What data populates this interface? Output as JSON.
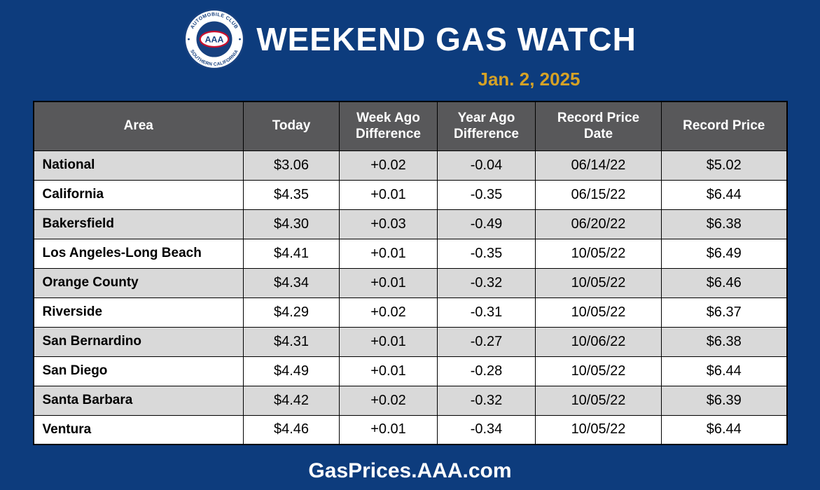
{
  "page": {
    "title": "WEEKEND GAS WATCH",
    "date": "Jan. 2, 2025",
    "footer": "GasPrices.AAA.com",
    "background_color": "#0d3c7d",
    "accent_gold": "#d5a226"
  },
  "logo": {
    "top_text": "AUTOMOBILE CLUB",
    "bottom_text": "SOUTHERN CALIFORNIA",
    "center_text": "AAA",
    "blue": "#16407f",
    "red": "#c8102e"
  },
  "table": {
    "header_bg": "#58585a",
    "row_alt_bg": "#d9d9d9",
    "column_keys": [
      "area",
      "today",
      "week_ago_diff",
      "year_ago_diff",
      "record_date",
      "record_price"
    ],
    "headers": [
      "Area",
      "Today",
      "Week Ago Difference",
      "Year Ago Difference",
      "Record Price Date",
      "Record Price"
    ],
    "rows": [
      {
        "area": "National",
        "today": "$3.06",
        "week_ago_diff": "+0.02",
        "year_ago_diff": "-0.04",
        "record_date": "06/14/22",
        "record_price": "$5.02"
      },
      {
        "area": "California",
        "today": "$4.35",
        "week_ago_diff": "+0.01",
        "year_ago_diff": "-0.35",
        "record_date": "06/15/22",
        "record_price": "$6.44"
      },
      {
        "area": "Bakersfield",
        "today": "$4.30",
        "week_ago_diff": "+0.03",
        "year_ago_diff": "-0.49",
        "record_date": "06/20/22",
        "record_price": "$6.38"
      },
      {
        "area": "Los Angeles-Long Beach",
        "today": "$4.41",
        "week_ago_diff": "+0.01",
        "year_ago_diff": "-0.35",
        "record_date": "10/05/22",
        "record_price": "$6.49"
      },
      {
        "area": "Orange County",
        "today": "$4.34",
        "week_ago_diff": "+0.01",
        "year_ago_diff": "-0.32",
        "record_date": "10/05/22",
        "record_price": "$6.46"
      },
      {
        "area": "Riverside",
        "today": "$4.29",
        "week_ago_diff": "+0.02",
        "year_ago_diff": "-0.31",
        "record_date": "10/05/22",
        "record_price": "$6.37"
      },
      {
        "area": "San Bernardino",
        "today": "$4.31",
        "week_ago_diff": "+0.01",
        "year_ago_diff": "-0.27",
        "record_date": "10/06/22",
        "record_price": "$6.38"
      },
      {
        "area": "San Diego",
        "today": "$4.49",
        "week_ago_diff": "+0.01",
        "year_ago_diff": "-0.28",
        "record_date": "10/05/22",
        "record_price": "$6.44"
      },
      {
        "area": "Santa Barbara",
        "today": "$4.42",
        "week_ago_diff": "+0.02",
        "year_ago_diff": "-0.32",
        "record_date": "10/05/22",
        "record_price": "$6.39"
      },
      {
        "area": "Ventura",
        "today": "$4.46",
        "week_ago_diff": "+0.01",
        "year_ago_diff": "-0.34",
        "record_date": "10/05/22",
        "record_price": "$6.44"
      }
    ]
  },
  "chart_data": {
    "type": "table",
    "title": "Weekend Gas Watch",
    "subtitle": "Jan. 2, 2025",
    "columns": [
      "Area",
      "Today",
      "Week Ago Difference",
      "Year Ago Difference",
      "Record Price Date",
      "Record Price"
    ],
    "rows": [
      [
        "National",
        "$3.06",
        "+0.02",
        "-0.04",
        "06/14/22",
        "$5.02"
      ],
      [
        "California",
        "$4.35",
        "+0.01",
        "-0.35",
        "06/15/22",
        "$6.44"
      ],
      [
        "Bakersfield",
        "$4.30",
        "+0.03",
        "-0.49",
        "06/20/22",
        "$6.38"
      ],
      [
        "Los Angeles-Long Beach",
        "$4.41",
        "+0.01",
        "-0.35",
        "10/05/22",
        "$6.49"
      ],
      [
        "Orange County",
        "$4.34",
        "+0.01",
        "-0.32",
        "10/05/22",
        "$6.46"
      ],
      [
        "Riverside",
        "$4.29",
        "+0.02",
        "-0.31",
        "10/05/22",
        "$6.37"
      ],
      [
        "San Bernardino",
        "$4.31",
        "+0.01",
        "-0.27",
        "10/06/22",
        "$6.38"
      ],
      [
        "San Diego",
        "$4.49",
        "+0.01",
        "-0.28",
        "10/05/22",
        "$6.44"
      ],
      [
        "Santa Barbara",
        "$4.42",
        "+0.02",
        "-0.32",
        "10/05/22",
        "$6.39"
      ],
      [
        "Ventura",
        "$4.46",
        "+0.01",
        "-0.34",
        "10/05/22",
        "$6.44"
      ]
    ],
    "source_label": "GasPrices.AAA.com"
  }
}
